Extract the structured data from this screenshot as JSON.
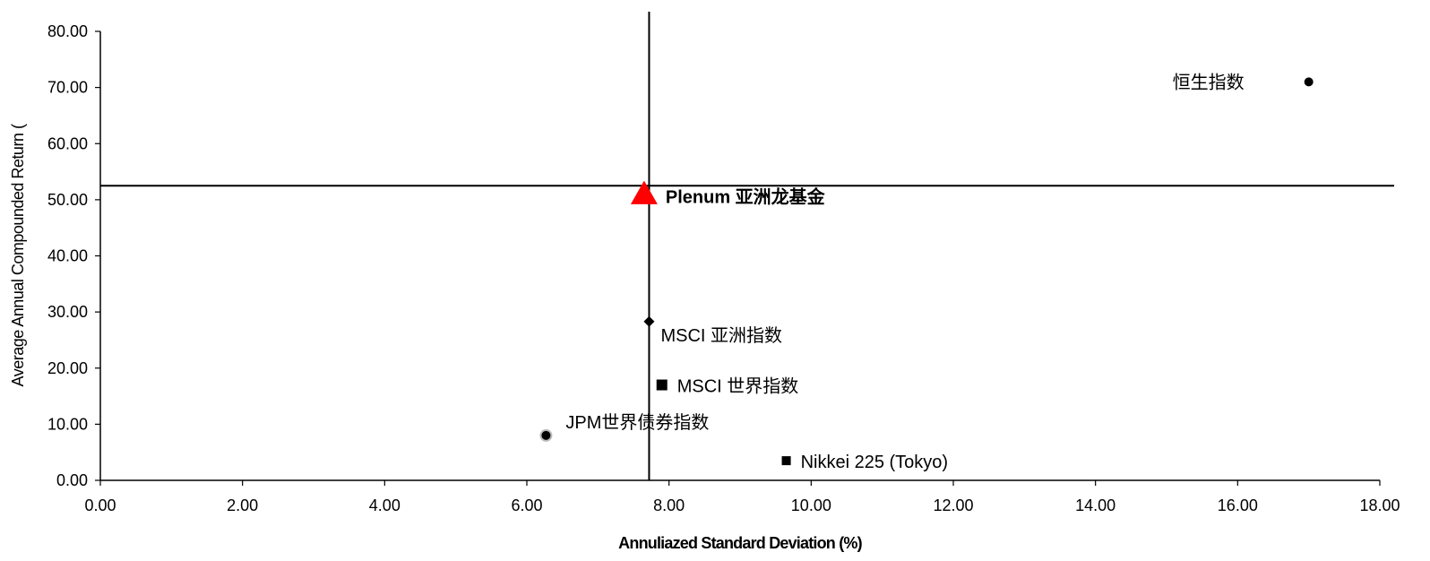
{
  "chart_data": {
    "type": "scatter",
    "title": "",
    "xlabel": "Annuliazed Standard Deviation (%)",
    "ylabel": "Average Annual Compounded Return (",
    "xlim": [
      0,
      18
    ],
    "ylim": [
      0,
      80
    ],
    "x_ticks": [
      "0.00",
      "2.00",
      "4.00",
      "6.00",
      "8.00",
      "10.00",
      "12.00",
      "14.00",
      "16.00",
      "18.00"
    ],
    "y_ticks": [
      "0.00",
      "10.00",
      "20.00",
      "30.00",
      "40.00",
      "50.00",
      "60.00",
      "70.00",
      "80.00"
    ],
    "reference_lines": {
      "vertical_x": 7.72,
      "horizontal_y": 52.5
    },
    "points": [
      {
        "label": "恒生指数",
        "x": 17.0,
        "y": 71.0,
        "marker": "circle",
        "color": "#000000",
        "bold": false
      },
      {
        "label": "Plenum 亚洲龙基金",
        "x": 7.65,
        "y": 51.0,
        "marker": "triangle",
        "color": "#ff0000",
        "bold": true
      },
      {
        "label": "MSCI 亚洲指数",
        "x": 7.72,
        "y": 28.3,
        "marker": "diamond",
        "color": "#000000",
        "bold": false
      },
      {
        "label": "MSCI 世界指数",
        "x": 7.9,
        "y": 17.0,
        "marker": "square",
        "color": "#000000",
        "bold": false
      },
      {
        "label": "JPM世界债券指数",
        "x": 6.27,
        "y": 8.0,
        "marker": "circle-outlined",
        "color": "#000000",
        "bold": false
      },
      {
        "label": "Nikkei 225 (Tokyo)",
        "x": 9.65,
        "y": 3.5,
        "marker": "square-small",
        "color": "#000000",
        "bold": false
      }
    ],
    "grid": false,
    "legend": "none"
  }
}
